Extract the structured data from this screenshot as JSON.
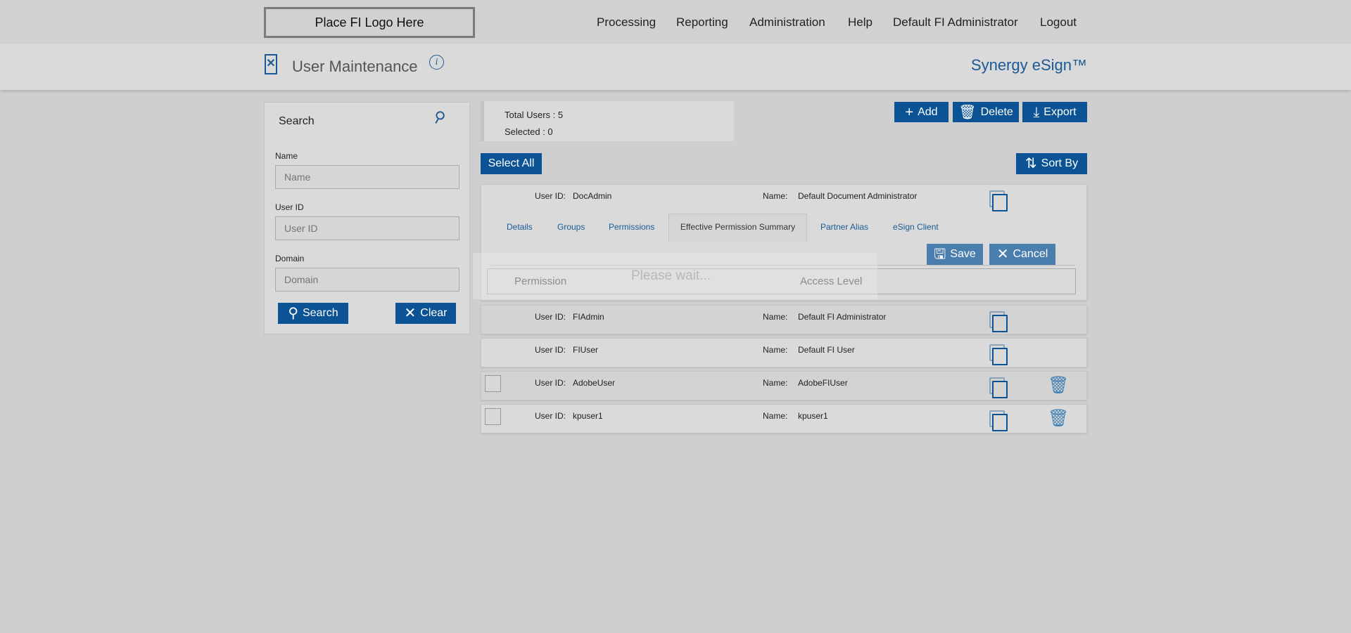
{
  "header": {
    "logo": "Place FI Logo Here",
    "nav": [
      "Processing",
      "Reporting",
      "Administration",
      "Help",
      "Default FI Administrator",
      "Logout"
    ]
  },
  "page": {
    "title": "User Maintenance",
    "brand": "Synergy eSign™"
  },
  "search": {
    "title": "Search",
    "fields": [
      {
        "label": "Name",
        "placeholder": "Name"
      },
      {
        "label": "User ID",
        "placeholder": "User ID"
      },
      {
        "label": "Domain",
        "placeholder": "Domain"
      }
    ],
    "search_label": "Search",
    "clear_label": "Clear"
  },
  "stats": {
    "total": "Total Users : 5",
    "selected": "Selected : 0"
  },
  "toolbar": {
    "add": "Add",
    "delete": "Delete",
    "export": "Export",
    "select_all": "Select All",
    "sort_by": "Sort By"
  },
  "labels": {
    "user_id": "User ID:",
    "name": "Name:"
  },
  "expanded": {
    "tabs": [
      "Details",
      "Groups",
      "Permissions",
      "Effective Permission Summary",
      "Partner Alias",
      "eSign Client"
    ],
    "active_tab": "Effective Permission Summary",
    "save": "Save",
    "cancel": "Cancel",
    "columns": [
      "Permission",
      "Access Level"
    ],
    "loading": "Please wait..."
  },
  "users": [
    {
      "id": "DocAdmin",
      "name": "Default Document Administrator"
    },
    {
      "id": "FIAdmin",
      "name": "Default FI Administrator"
    },
    {
      "id": "FIUser",
      "name": "Default FI User"
    },
    {
      "id": "AdobeUser",
      "name": "AdobeFIUser"
    },
    {
      "id": "kpuser1",
      "name": "kpuser1"
    }
  ],
  "colors": {
    "accent": "#0b5394",
    "brand": "#1a5a96"
  }
}
